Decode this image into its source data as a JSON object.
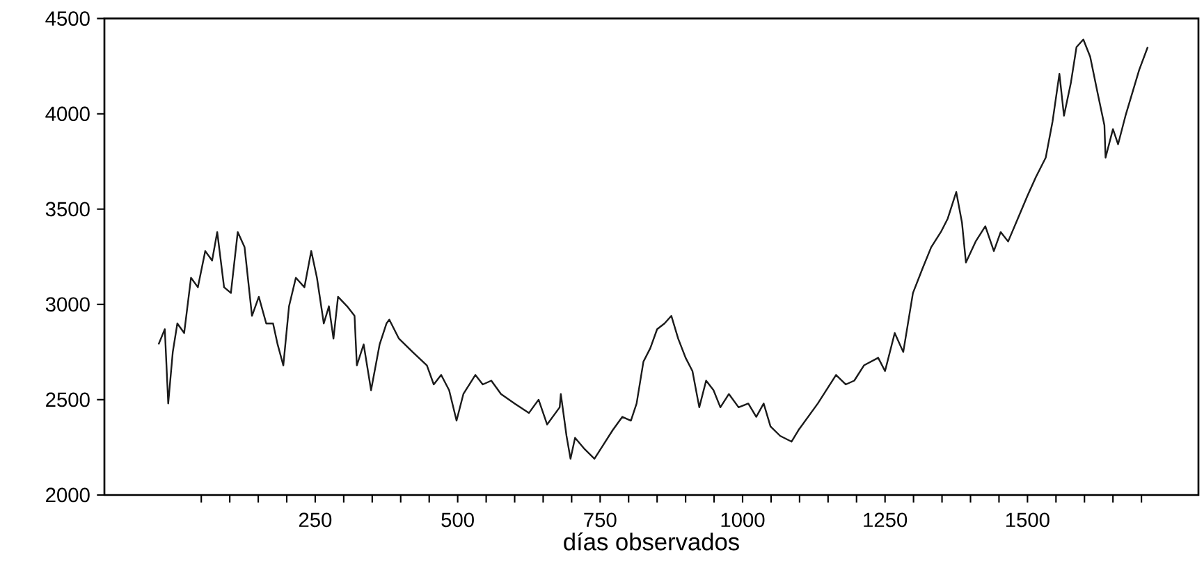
{
  "chart_data": {
    "type": "line",
    "xlabel": "días observados",
    "xlim": [
      -120,
      1800
    ],
    "ylim": [
      2000,
      4500
    ],
    "xticks": [
      {
        "value": 50,
        "label": null
      },
      {
        "value": 100,
        "label": null
      },
      {
        "value": 150,
        "label": null
      },
      {
        "value": 200,
        "label": null
      },
      250,
      {
        "value": 300,
        "label": null
      },
      {
        "value": 350,
        "label": null
      },
      {
        "value": 400,
        "label": null
      },
      {
        "value": 450,
        "label": null
      },
      500,
      {
        "value": 550,
        "label": null
      },
      {
        "value": 600,
        "label": null
      },
      {
        "value": 650,
        "label": null
      },
      {
        "value": 700,
        "label": null
      },
      750,
      {
        "value": 800,
        "label": null
      },
      {
        "value": 850,
        "label": null
      },
      {
        "value": 900,
        "label": null
      },
      {
        "value": 950,
        "label": null
      },
      1000,
      {
        "value": 1050,
        "label": null
      },
      {
        "value": 1100,
        "label": null
      },
      {
        "value": 1150,
        "label": null
      },
      {
        "value": 1200,
        "label": null
      },
      1250,
      {
        "value": 1300,
        "label": null
      },
      {
        "value": 1350,
        "label": null
      },
      {
        "value": 1400,
        "label": null
      },
      {
        "value": 1450,
        "label": null
      },
      1500,
      {
        "value": 1550,
        "label": null
      },
      {
        "value": 1600,
        "label": null
      },
      {
        "value": 1650,
        "label": null
      },
      {
        "value": 1700,
        "label": null
      }
    ],
    "yticks": [
      2000,
      2500,
      3000,
      3500,
      4000,
      4500
    ],
    "grid": false,
    "marker": "none",
    "line_style": "solid",
    "series": [
      {
        "color": "#1a1a1a",
        "x": [
          -25,
          -14,
          -8,
          0,
          8,
          20,
          32,
          44,
          57,
          69,
          78,
          90,
          102,
          114,
          126,
          139,
          151,
          164,
          176,
          184,
          194,
          204,
          216,
          231,
          243,
          253,
          265,
          274,
          282,
          290,
          306,
          319,
          323,
          335,
          348,
          363,
          375,
          380,
          397,
          421,
          446,
          458,
          471,
          485,
          498,
          510,
          531,
          544,
          559,
          576,
          600,
          625,
          642,
          657,
          679,
          681,
          691,
          698,
          706,
          723,
          740,
          755,
          772,
          789,
          804,
          814,
          826,
          838,
          850,
          863,
          875,
          887,
          900,
          912,
          924,
          936,
          949,
          961,
          976,
          993,
          1010,
          1024,
          1037,
          1049,
          1066,
          1086,
          1098,
          1115,
          1132,
          1147,
          1164,
          1181,
          1196,
          1213,
          1238,
          1250,
          1267,
          1282,
          1299,
          1316,
          1331,
          1348,
          1360,
          1375,
          1385,
          1392,
          1409,
          1426,
          1441,
          1453,
          1466,
          1483,
          1500,
          1515,
          1532,
          1544,
          1556,
          1564,
          1576,
          1586,
          1598,
          1610,
          1623,
          1635,
          1637,
          1650,
          1659,
          1672,
          1684,
          1696,
          1711
        ],
        "values": [
          2790,
          2870,
          2480,
          2750,
          2900,
          2850,
          3140,
          3090,
          3280,
          3230,
          3380,
          3090,
          3060,
          3380,
          3300,
          2940,
          3040,
          2900,
          2900,
          2790,
          2680,
          2990,
          3140,
          3090,
          3280,
          3140,
          2900,
          2990,
          2820,
          3040,
          2990,
          2940,
          2680,
          2790,
          2550,
          2790,
          2900,
          2920,
          2820,
          2750,
          2680,
          2580,
          2630,
          2550,
          2390,
          2530,
          2630,
          2580,
          2600,
          2530,
          2480,
          2430,
          2500,
          2370,
          2460,
          2530,
          2310,
          2190,
          2300,
          2240,
          2190,
          2260,
          2340,
          2410,
          2390,
          2480,
          2700,
          2770,
          2870,
          2900,
          2940,
          2820,
          2720,
          2650,
          2460,
          2600,
          2550,
          2460,
          2530,
          2460,
          2480,
          2410,
          2480,
          2360,
          2310,
          2280,
          2340,
          2410,
          2480,
          2550,
          2630,
          2580,
          2600,
          2680,
          2720,
          2650,
          2850,
          2750,
          3060,
          3190,
          3300,
          3380,
          3450,
          3590,
          3430,
          3220,
          3330,
          3410,
          3280,
          3380,
          3330,
          3450,
          3570,
          3670,
          3770,
          3960,
          4210,
          3990,
          4160,
          4350,
          4390,
          4300,
          4110,
          3940,
          3770,
          3920,
          3840,
          3990,
          4110,
          4230,
          4350
        ]
      }
    ]
  }
}
